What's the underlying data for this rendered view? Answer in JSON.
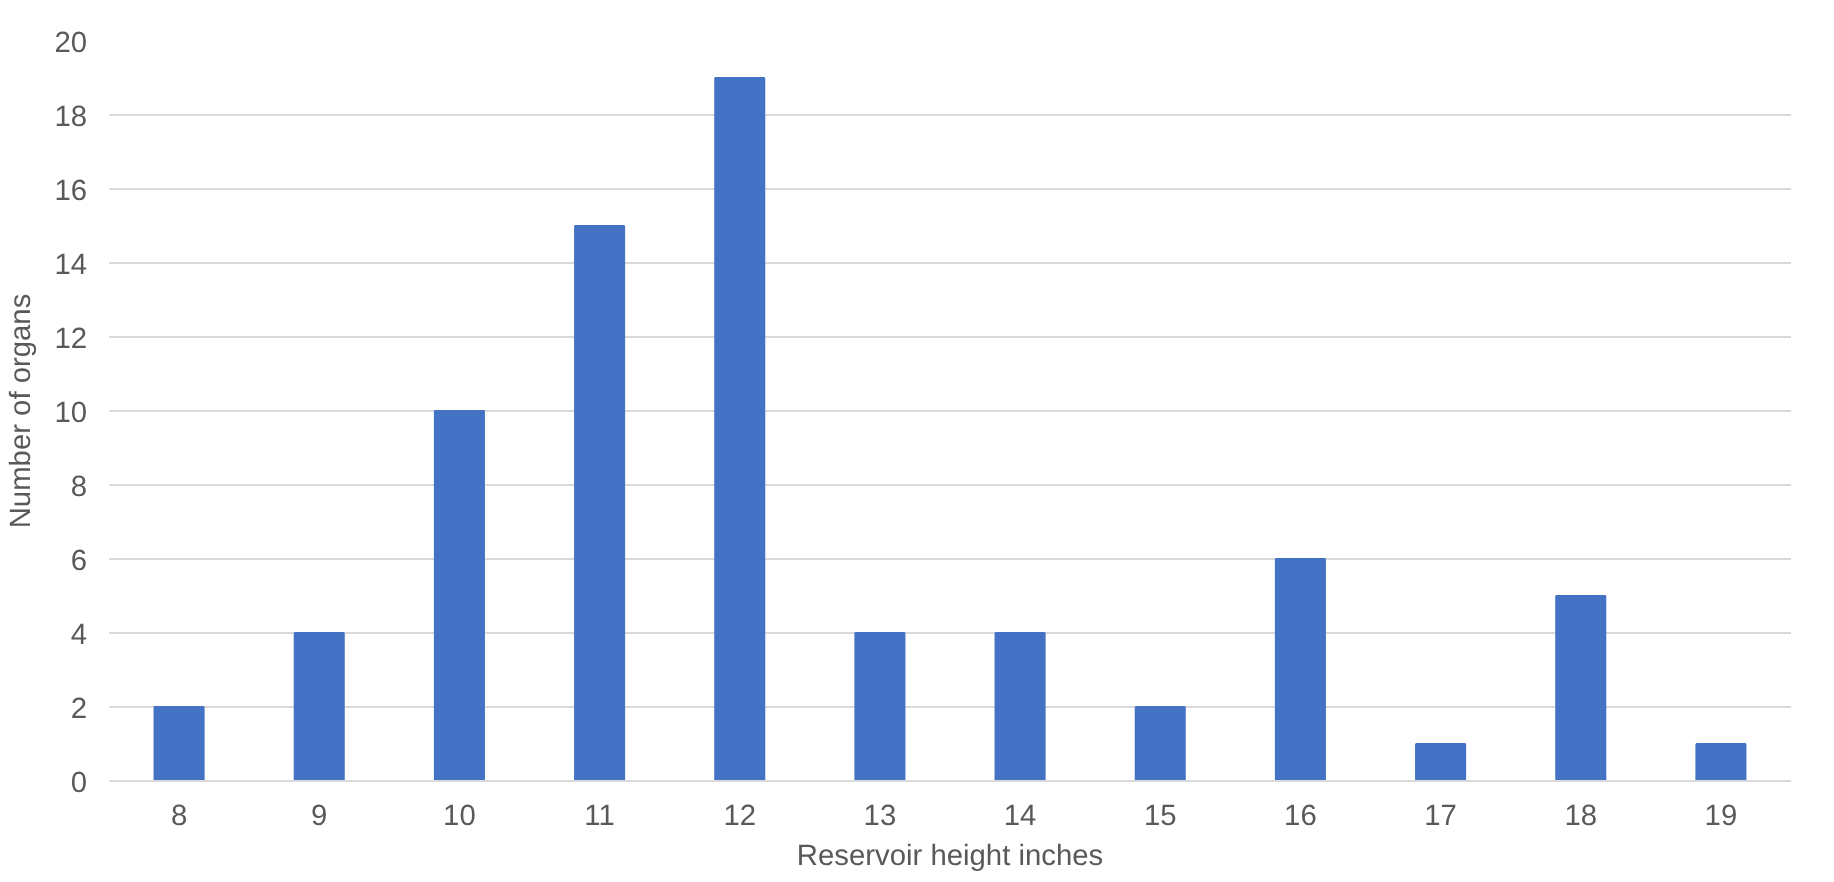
{
  "chart_data": {
    "type": "bar",
    "xlabel": "Reservoir height inches",
    "ylabel": "Number of organs",
    "categories": [
      "8",
      "9",
      "10",
      "11",
      "12",
      "13",
      "14",
      "15",
      "16",
      "17",
      "18",
      "19"
    ],
    "values": [
      2,
      4,
      10,
      15,
      19,
      4,
      4,
      2,
      6,
      1,
      5,
      1
    ],
    "color": "#4472c4",
    "ylim": [
      0,
      20
    ],
    "yticks": [
      0,
      2,
      4,
      6,
      8,
      10,
      12,
      14,
      16,
      18,
      20
    ],
    "grid": "y"
  }
}
